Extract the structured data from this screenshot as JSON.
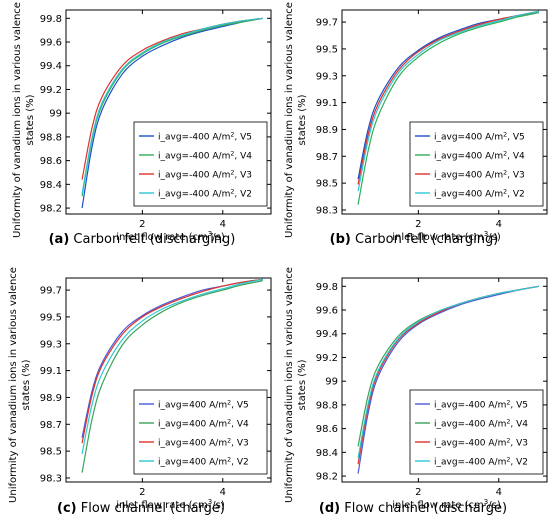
{
  "figure": {
    "y_axis_label_line1": "Uniformity of vanadium ions in various valence",
    "y_axis_label_line2": "states  (%)",
    "x_axis_label": "inlet flow rate (cm³/s)"
  },
  "chart_data": [
    {
      "type": "line",
      "caption_letter": "(a)",
      "caption_text": " Carbon felt (discharging)",
      "xlabel": "inlet flow rate (cm³/s)",
      "ylabel": "Uniformity of vanadium ions in various valence states (%)",
      "xlim": [
        0.1,
        5.2
      ],
      "ylim": [
        98.15,
        99.87
      ],
      "xticks": [
        2,
        4
      ],
      "yticks": [
        98.2,
        98.4,
        98.6,
        98.8,
        99,
        99.2,
        99.4,
        99.6,
        99.8
      ],
      "ytick_labels": [
        "98.2",
        "98.4",
        "98.6",
        "98.8",
        "99",
        "99.2",
        "99.4",
        "99.6",
        "99.8"
      ],
      "legend_position": "bottom-right",
      "series": [
        {
          "name": "i_avg=-400 A/m², V5",
          "color": "#1f4fc8",
          "x": [
            0.5,
            0.75,
            1,
            1.5,
            2,
            2.5,
            3,
            3.5,
            4,
            4.5,
            5
          ],
          "y": [
            98.2,
            98.72,
            99.03,
            99.33,
            99.48,
            99.57,
            99.64,
            99.69,
            99.73,
            99.77,
            99.8
          ]
        },
        {
          "name": "i_avg=-400 A/m², V4",
          "color": "#2fae57",
          "x": [
            0.5,
            0.75,
            1,
            1.5,
            2,
            2.5,
            3,
            3.5,
            4,
            4.5,
            5
          ],
          "y": [
            98.3,
            98.78,
            99.07,
            99.36,
            99.5,
            99.59,
            99.65,
            99.7,
            99.74,
            99.77,
            99.8
          ]
        },
        {
          "name": "i_avg=-400 A/m², V3",
          "color": "#e0302a",
          "x": [
            0.5,
            0.75,
            1,
            1.5,
            2,
            2.5,
            3,
            3.5,
            4,
            4.5,
            5
          ],
          "y": [
            98.44,
            98.88,
            99.14,
            99.4,
            99.53,
            99.61,
            99.67,
            99.71,
            99.75,
            99.78,
            99.8
          ]
        },
        {
          "name": "i_avg=-400 A/m², V2",
          "color": "#2ec8d2",
          "x": [
            0.5,
            0.75,
            1,
            1.5,
            2,
            2.5,
            3,
            3.5,
            4,
            4.5,
            5
          ],
          "y": [
            98.32,
            98.8,
            99.09,
            99.37,
            99.51,
            99.6,
            99.66,
            99.71,
            99.75,
            99.78,
            99.8
          ]
        }
      ]
    },
    {
      "type": "line",
      "caption_letter": "(b)",
      "caption_text": " Carbon felt (charging)",
      "xlabel": "inlet flow rate (cm³/s)",
      "ylabel": "Uniformity of vanadium ions in various valence states (%)",
      "xlim": [
        0.1,
        5.2
      ],
      "ylim": [
        98.27,
        99.79
      ],
      "xticks": [
        2,
        4
      ],
      "yticks": [
        98.3,
        98.5,
        98.7,
        98.9,
        99.1,
        99.3,
        99.5,
        99.7
      ],
      "ytick_labels": [
        "98.3",
        "98.5",
        "98.7",
        "98.9",
        "99.1",
        "99.3",
        "99.5",
        "99.7"
      ],
      "legend_position": "bottom-right",
      "series": [
        {
          "name": "i_avg=400 A/m², V5",
          "color": "#1f4fc8",
          "x": [
            0.5,
            0.75,
            1,
            1.5,
            2,
            2.5,
            3,
            3.5,
            4,
            4.5,
            5
          ],
          "y": [
            98.53,
            98.9,
            99.12,
            99.36,
            99.49,
            99.58,
            99.64,
            99.69,
            99.72,
            99.75,
            99.78
          ]
        },
        {
          "name": "i_avg=400 A/m², V4",
          "color": "#2fae57",
          "x": [
            0.5,
            0.75,
            1,
            1.5,
            2,
            2.5,
            3,
            3.5,
            4,
            4.5,
            5
          ],
          "y": [
            98.34,
            98.74,
            99.0,
            99.29,
            99.44,
            99.54,
            99.61,
            99.66,
            99.7,
            99.74,
            99.77
          ]
        },
        {
          "name": "i_avg=400 A/m², V3",
          "color": "#e0302a",
          "x": [
            0.5,
            0.75,
            1,
            1.5,
            2,
            2.5,
            3,
            3.5,
            4,
            4.5,
            5
          ],
          "y": [
            98.49,
            98.86,
            99.09,
            99.34,
            99.48,
            99.57,
            99.63,
            99.68,
            99.72,
            99.75,
            99.78
          ]
        },
        {
          "name": "i_avg=400 A/m², V2",
          "color": "#2ec8d2",
          "x": [
            0.5,
            0.75,
            1,
            1.5,
            2,
            2.5,
            3,
            3.5,
            4,
            4.5,
            5
          ],
          "y": [
            98.44,
            98.82,
            99.06,
            99.32,
            99.46,
            99.56,
            99.62,
            99.67,
            99.71,
            99.75,
            99.78
          ]
        }
      ]
    },
    {
      "type": "line",
      "caption_letter": "(c)",
      "caption_text": " Flow channel (charge)",
      "xlabel": "inlet flow rate (cm³/s)",
      "ylabel": "Uniformity of vanadium ions in various valence states (%)",
      "xlim": [
        0.1,
        5.2
      ],
      "ylim": [
        98.27,
        99.79
      ],
      "xticks": [
        2,
        4
      ],
      "yticks": [
        98.3,
        98.5,
        98.7,
        98.9,
        99.1,
        99.3,
        99.5,
        99.7
      ],
      "ytick_labels": [
        "98.3",
        "98.5",
        "98.7",
        "98.9",
        "99.1",
        "99.3",
        "99.5",
        "99.7"
      ],
      "legend_position": "bottom-right",
      "series": [
        {
          "name": "i_avg=400 A/m², V5",
          "color": "#4a5bd6",
          "x": [
            0.5,
            0.75,
            1,
            1.5,
            2,
            2.5,
            3,
            3.5,
            4,
            4.5,
            5
          ],
          "y": [
            98.6,
            98.95,
            99.16,
            99.39,
            99.51,
            99.59,
            99.65,
            99.7,
            99.73,
            99.76,
            99.78
          ]
        },
        {
          "name": "i_avg=400 A/m², V4",
          "color": "#3aa35a",
          "x": [
            0.5,
            0.75,
            1,
            1.5,
            2,
            2.5,
            3,
            3.5,
            4,
            4.5,
            5
          ],
          "y": [
            98.34,
            98.74,
            99.0,
            99.29,
            99.44,
            99.54,
            99.61,
            99.66,
            99.7,
            99.74,
            99.77
          ]
        },
        {
          "name": "i_avg=400 A/m², V3",
          "color": "#e0302a",
          "x": [
            0.5,
            0.75,
            1,
            1.5,
            2,
            2.5,
            3,
            3.5,
            4,
            4.5,
            5
          ],
          "y": [
            98.56,
            98.92,
            99.14,
            99.37,
            99.5,
            99.58,
            99.64,
            99.69,
            99.73,
            99.76,
            99.78
          ]
        },
        {
          "name": "i_avg=400 A/m², V2",
          "color": "#2ec8d2",
          "x": [
            0.5,
            0.75,
            1,
            1.5,
            2,
            2.5,
            3,
            3.5,
            4,
            4.5,
            5
          ],
          "y": [
            98.48,
            98.85,
            99.08,
            99.33,
            99.47,
            99.56,
            99.62,
            99.67,
            99.71,
            99.75,
            99.78
          ]
        }
      ]
    },
    {
      "type": "line",
      "caption_letter": "(d)",
      "caption_text": " Flow channel (discharge)",
      "xlabel": "inlet flow rate (cm³/s)",
      "ylabel": "Uniformity of vanadium ions in various valence states (%)",
      "xlim": [
        0.1,
        5.2
      ],
      "ylim": [
        98.15,
        99.87
      ],
      "xticks": [
        2,
        4
      ],
      "yticks": [
        98.2,
        98.4,
        98.6,
        98.8,
        99,
        99.2,
        99.4,
        99.6,
        99.8
      ],
      "ytick_labels": [
        "98.2",
        "98.4",
        "98.6",
        "98.8",
        "99",
        "99.2",
        "99.4",
        "99.6",
        "99.8"
      ],
      "legend_position": "bottom-right",
      "series": [
        {
          "name": "i_avg=-400 A/m², V5",
          "color": "#4a5bd6",
          "x": [
            0.5,
            0.75,
            1,
            1.5,
            2,
            2.5,
            3,
            3.5,
            4,
            4.5,
            5
          ],
          "y": [
            98.22,
            98.73,
            99.04,
            99.33,
            99.48,
            99.57,
            99.64,
            99.69,
            99.73,
            99.77,
            99.8
          ]
        },
        {
          "name": "i_avg=-400 A/m², V4",
          "color": "#3aa35a",
          "x": [
            0.5,
            0.75,
            1,
            1.5,
            2,
            2.5,
            3,
            3.5,
            4,
            4.5,
            5
          ],
          "y": [
            98.45,
            98.88,
            99.13,
            99.38,
            99.51,
            99.59,
            99.65,
            99.7,
            99.74,
            99.77,
            99.8
          ]
        },
        {
          "name": "i_avg=-400 A/m², V3",
          "color": "#e0302a",
          "x": [
            0.5,
            0.75,
            1,
            1.5,
            2,
            2.5,
            3,
            3.5,
            4,
            4.5,
            5
          ],
          "y": [
            98.3,
            98.78,
            99.07,
            99.35,
            99.49,
            99.58,
            99.65,
            99.7,
            99.74,
            99.77,
            99.8
          ]
        },
        {
          "name": "i_avg=-400 A/m², V2",
          "color": "#2ec8d2",
          "x": [
            0.5,
            0.75,
            1,
            1.5,
            2,
            2.5,
            3,
            3.5,
            4,
            4.5,
            5
          ],
          "y": [
            98.35,
            98.81,
            99.09,
            99.36,
            99.5,
            99.59,
            99.65,
            99.7,
            99.74,
            99.77,
            99.8
          ]
        }
      ]
    }
  ]
}
